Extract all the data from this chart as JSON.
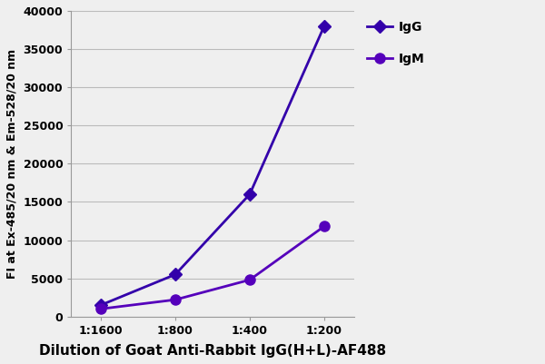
{
  "x_labels": [
    "1:1600",
    "1:800",
    "1:400",
    "1:200"
  ],
  "IgG_values": [
    1500,
    5500,
    16000,
    38000
  ],
  "IgM_values": [
    1000,
    2200,
    4800,
    11800
  ],
  "line_color_IgG": "#3300AA",
  "line_color_IgM": "#5500BB",
  "marker_IgG": "D",
  "marker_IgM": "o",
  "marker_size_IgG": 7,
  "marker_size_IgM": 8,
  "linewidth": 2.0,
  "ylabel": "FI at Ex-485/20 nm & Em-528/20 nm",
  "xlabel": "Dilution of Goat Anti-Rabbit IgG(H+L)-AF488",
  "ylim": [
    0,
    40000
  ],
  "yticks": [
    0,
    5000,
    10000,
    15000,
    20000,
    25000,
    30000,
    35000,
    40000
  ],
  "xlabel_fontsize": 11,
  "ylabel_fontsize": 9,
  "tick_fontsize": 9,
  "legend_IgG": "IgG",
  "legend_IgM": "IgM",
  "bg_color": "#EFEFEF",
  "plot_bg_color": "#EFEFEF",
  "grid_color": "#BBBBBB",
  "grid_linewidth": 0.8
}
